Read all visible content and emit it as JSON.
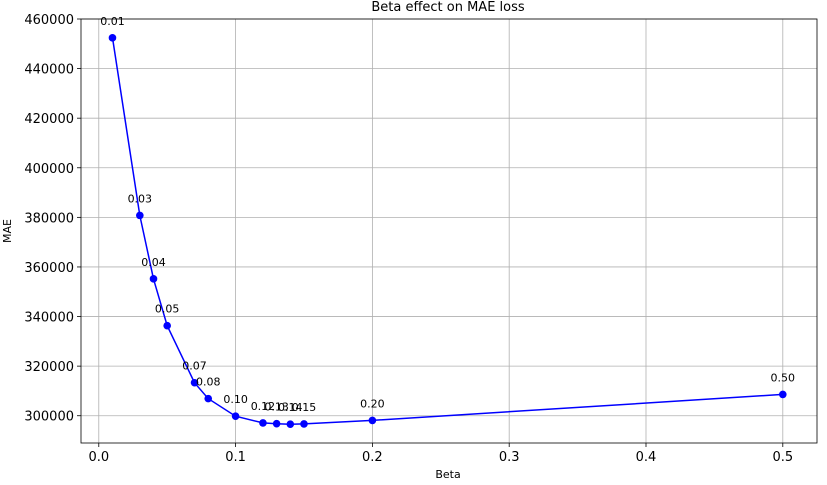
{
  "chart_data": {
    "type": "line",
    "title": "Beta effect on MAE loss",
    "xlabel": "Beta",
    "ylabel": "MAE",
    "xlim": [
      -0.013,
      0.525
    ],
    "ylim": [
      289000,
      460000
    ],
    "grid": true,
    "x_ticks": [
      0.0,
      0.1,
      0.2,
      0.3,
      0.4,
      0.5
    ],
    "x_tick_labels": [
      "0.0",
      "0.1",
      "0.2",
      "0.3",
      "0.4",
      "0.5"
    ],
    "y_ticks": [
      300000,
      320000,
      340000,
      360000,
      380000,
      400000,
      420000,
      440000,
      460000
    ],
    "y_tick_labels": [
      "300000",
      "320000",
      "340000",
      "360000",
      "380000",
      "400000",
      "420000",
      "440000",
      "460000"
    ],
    "color": "#0000ff",
    "series": [
      {
        "x": [
          0.01,
          0.03,
          0.04,
          0.05,
          0.07,
          0.08,
          0.1,
          0.12,
          0.13,
          0.14,
          0.15,
          0.2,
          0.5
        ],
        "y": [
          452400,
          380800,
          355200,
          336300,
          313300,
          306900,
          299800,
          297100,
          296800,
          296600,
          296700,
          298100,
          308600
        ],
        "point_labels": [
          "0.01",
          "0.03",
          "0.04",
          "0.05",
          "0.07",
          "0.08",
          "0.10",
          "0.12",
          "0.13",
          "0.14",
          "0.15",
          "0.20",
          "0.50"
        ]
      }
    ]
  }
}
